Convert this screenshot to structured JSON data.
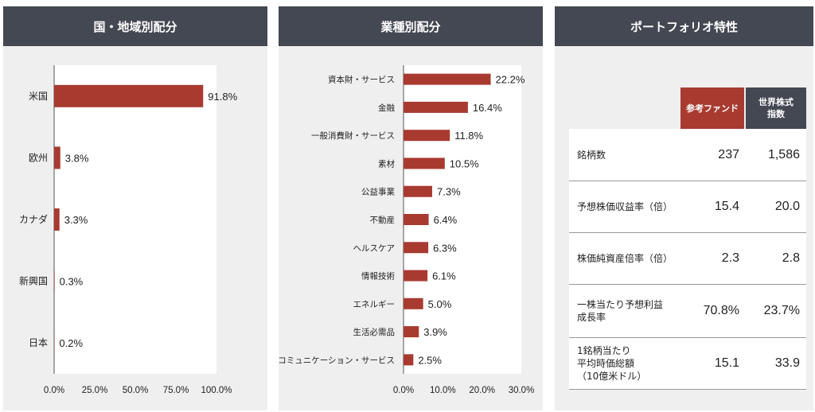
{
  "chart_data": [
    {
      "type": "bar",
      "orientation": "horizontal",
      "title": "国・地域別配分",
      "categories": [
        "米国",
        "欧州",
        "カナダ",
        "新興国",
        "日本"
      ],
      "values": [
        91.8,
        3.8,
        3.3,
        0.3,
        0.2
      ],
      "labels": [
        "91.8%",
        "3.8%",
        "3.3%",
        "0.3%",
        "0.2%"
      ],
      "xlim": [
        0,
        100
      ],
      "xticks": [
        "0.0%",
        "25.0%",
        "50.0%",
        "75.0%",
        "100.0%"
      ],
      "color": "#a93a30"
    },
    {
      "type": "bar",
      "orientation": "horizontal",
      "title": "業種別配分",
      "categories": [
        "資本財・サービス",
        "金融",
        "一般消費財・サービス",
        "素材",
        "公益事業",
        "不動産",
        "ヘルスケア",
        "情報技術",
        "エネルギー",
        "生活必需品",
        "コミュニケーション・サービス"
      ],
      "values": [
        22.2,
        16.4,
        11.8,
        10.5,
        7.3,
        6.4,
        6.3,
        6.1,
        5.0,
        3.9,
        2.5
      ],
      "labels": [
        "22.2%",
        "16.4%",
        "11.8%",
        "10.5%",
        "7.3%",
        "6.4%",
        "6.3%",
        "6.1%",
        "5.0%",
        "3.9%",
        "2.5%"
      ],
      "xlim": [
        0,
        30
      ],
      "xticks": [
        "0.0%",
        "10.0%",
        "20.0%",
        "30.0%"
      ],
      "color": "#a93a30"
    }
  ],
  "table": {
    "title": "ポートフォリオ特性",
    "col_fund": "参考ファンド",
    "col_index": "世界株式\n指数",
    "fund_color": "#a93a30",
    "index_color": "#434852",
    "rows": [
      {
        "label": "銘柄数",
        "fund": "237",
        "index": "1,586"
      },
      {
        "label": "予想株価収益率（倍）",
        "fund": "15.4",
        "index": "20.0"
      },
      {
        "label": "株価純資産倍率（倍）",
        "fund": "2.3",
        "index": "2.8"
      },
      {
        "label": "一株当たり予想利益\n成長率",
        "fund": "70.8%",
        "index": "23.7%"
      },
      {
        "label": "1銘柄当たり\n平均時価総額\n（10億米ドル）",
        "fund": "15.1",
        "index": "33.9"
      }
    ]
  }
}
